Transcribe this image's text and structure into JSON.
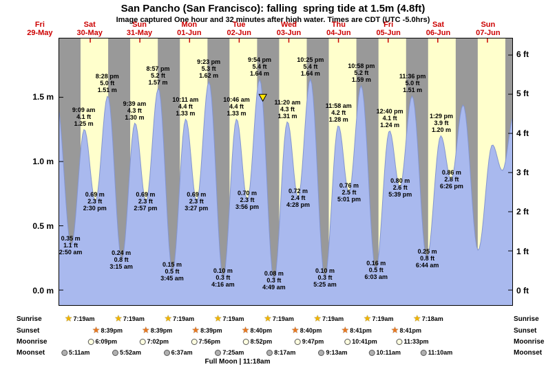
{
  "title": "San Pancho (San Francisco): falling  spring tide at 1.5m (4.8ft)",
  "subtitle": "Image captured One hour and 32 minutes after high water. Times are CDT (UTC -5.0hrs)",
  "colors": {
    "night_band": "#999999",
    "day_band": "#ffffcc",
    "tide_fill": "#a9b9ee",
    "tide_stroke": "#8395d0",
    "date_red": "#cc0000",
    "marker_fill": "#ffe400",
    "sunrise_star": "#f0b400",
    "sunset_star": "#e87820",
    "moonrise_fill": "#ffffe0",
    "moonset_fill": "#b0b0b0"
  },
  "y_axis_left": [
    {
      "text": "1.5 m",
      "m": 1.5
    },
    {
      "text": "1.0 m",
      "m": 1.0
    },
    {
      "text": "0.5 m",
      "m": 0.5
    },
    {
      "text": "0.0 m",
      "m": 0.0
    }
  ],
  "y_axis_right": [
    {
      "text": "6 ft",
      "ft": 6
    },
    {
      "text": "5 ft",
      "ft": 5
    },
    {
      "text": "4 ft",
      "ft": 4
    },
    {
      "text": "3 ft",
      "ft": 3
    },
    {
      "text": "2 ft",
      "ft": 2
    },
    {
      "text": "1 ft",
      "ft": 1
    },
    {
      "text": "0 ft",
      "ft": 0
    }
  ],
  "days": [
    {
      "dow": "Fri",
      "date": "29-May"
    },
    {
      "dow": "Sat",
      "date": "30-May"
    },
    {
      "dow": "Sun",
      "date": "31-May"
    },
    {
      "dow": "Mon",
      "date": "01-Jun"
    },
    {
      "dow": "Tue",
      "date": "02-Jun"
    },
    {
      "dow": "Wed",
      "date": "03-Jun"
    },
    {
      "dow": "Thu",
      "date": "04-Jun"
    },
    {
      "dow": "Fri",
      "date": "05-Jun"
    },
    {
      "dow": "Sat",
      "date": "06-Jun"
    },
    {
      "dow": "Sun",
      "date": "07-Jun"
    }
  ],
  "chart_data": {
    "type": "area",
    "x_axis": "time, 29-May through 07-Jun",
    "y_axis_left_unit": "m",
    "y_axis_right_unit": "ft",
    "ylim_m": [
      -0.12,
      1.96
    ],
    "extremes": [
      {
        "type": "low",
        "day": 1,
        "time": "2:50 am",
        "ft": "1.1 ft",
        "m": "0.35 m",
        "height_m": 0.35
      },
      {
        "type": "high",
        "day": 1,
        "time": "9:09 am",
        "ft": "4.1 ft",
        "m": "1.25 m",
        "height_m": 1.25
      },
      {
        "type": "low",
        "day": 1,
        "time": "2:30 pm",
        "ft": "2.3 ft",
        "m": "0.69 m",
        "height_m": 0.69
      },
      {
        "type": "high",
        "day": 1,
        "time": "8:28 pm",
        "ft": "5.0 ft",
        "m": "1.51 m",
        "height_m": 1.51
      },
      {
        "type": "low",
        "day": 2,
        "time": "3:15 am",
        "ft": "0.8 ft",
        "m": "0.24 m",
        "height_m": 0.24
      },
      {
        "type": "high",
        "day": 2,
        "time": "9:39 am",
        "ft": "4.3 ft",
        "m": "1.30 m",
        "height_m": 1.3
      },
      {
        "type": "low",
        "day": 2,
        "time": "2:57 pm",
        "ft": "2.3 ft",
        "m": "0.69 m",
        "height_m": 0.69
      },
      {
        "type": "high",
        "day": 2,
        "time": "8:57 pm",
        "ft": "5.2 ft",
        "m": "1.57 m",
        "height_m": 1.57
      },
      {
        "type": "low",
        "day": 3,
        "time": "3:45 am",
        "ft": "0.5 ft",
        "m": "0.15 m",
        "height_m": 0.15
      },
      {
        "type": "high",
        "day": 3,
        "time": "10:11 am",
        "ft": "4.4 ft",
        "m": "1.33 m",
        "height_m": 1.33
      },
      {
        "type": "low",
        "day": 3,
        "time": "3:27 pm",
        "ft": "2.3 ft",
        "m": "0.69 m",
        "height_m": 0.69
      },
      {
        "type": "high",
        "day": 3,
        "time": "9:23 pm",
        "ft": "5.3 ft",
        "m": "1.62 m",
        "height_m": 1.62
      },
      {
        "type": "low",
        "day": 4,
        "time": "4:16 am",
        "ft": "0.3 ft",
        "m": "0.10 m",
        "height_m": 0.1
      },
      {
        "type": "high",
        "day": 4,
        "time": "10:46 am",
        "ft": "4.4 ft",
        "m": "1.33 m",
        "height_m": 1.33
      },
      {
        "type": "low",
        "day": 4,
        "time": "3:56 pm",
        "ft": "2.3 ft",
        "m": "0.70 m",
        "height_m": 0.7
      },
      {
        "type": "high",
        "day": 4,
        "time": "9:54 pm",
        "ft": "5.4 ft",
        "m": "1.64 m",
        "height_m": 1.64
      },
      {
        "type": "low",
        "day": 5,
        "time": "4:49 am",
        "ft": "0.3 ft",
        "m": "0.08 m",
        "height_m": 0.08
      },
      {
        "type": "high",
        "day": 5,
        "time": "11:20 am",
        "ft": "4.3 ft",
        "m": "1.31 m",
        "height_m": 1.31
      },
      {
        "type": "low",
        "day": 5,
        "time": "4:28 pm",
        "ft": "2.4 ft",
        "m": "0.72 m",
        "height_m": 0.72
      },
      {
        "type": "high",
        "day": 5,
        "time": "10:25 pm",
        "ft": "5.4 ft",
        "m": "1.64 m",
        "height_m": 1.64
      },
      {
        "type": "low",
        "day": 6,
        "time": "5:25 am",
        "ft": "0.3 ft",
        "m": "0.10 m",
        "height_m": 0.1
      },
      {
        "type": "high",
        "day": 6,
        "time": "11:58 am",
        "ft": "4.2 ft",
        "m": "1.28 m",
        "height_m": 1.28
      },
      {
        "type": "low",
        "day": 6,
        "time": "5:01 pm",
        "ft": "2.5 ft",
        "m": "0.76 m",
        "height_m": 0.76
      },
      {
        "type": "high",
        "day": 6,
        "time": "10:58 pm",
        "ft": "5.2 ft",
        "m": "1.59 m",
        "height_m": 1.59
      },
      {
        "type": "low",
        "day": 7,
        "time": "6:03 am",
        "ft": "0.5 ft",
        "m": "0.16 m",
        "height_m": 0.16
      },
      {
        "type": "high",
        "day": 7,
        "time": "12:40 pm",
        "ft": "4.1 ft",
        "m": "1.24 m",
        "height_m": 1.24
      },
      {
        "type": "low",
        "day": 7,
        "time": "5:39 pm",
        "ft": "2.6 ft",
        "m": "0.80 m",
        "height_m": 0.8
      },
      {
        "type": "high",
        "day": 7,
        "time": "11:36 pm",
        "ft": "5.0 ft",
        "m": "1.51 m",
        "height_m": 1.51
      },
      {
        "type": "low",
        "day": 8,
        "time": "6:44 am",
        "ft": "0.8 ft",
        "m": "0.25 m",
        "height_m": 0.25
      },
      {
        "type": "high",
        "day": 8,
        "time": "1:29 pm",
        "ft": "3.9 ft",
        "m": "1.20 m",
        "height_m": 1.2
      },
      {
        "type": "low",
        "day": 8,
        "time": "6:26 pm",
        "ft": "2.8 ft",
        "m": "0.86 m",
        "height_m": 0.86
      }
    ],
    "edge_points": [
      {
        "day": 0,
        "hour": 19.9,
        "height_m": 1.45
      },
      {
        "day": 9,
        "hour": 0.25,
        "height_m": 1.44
      },
      {
        "day": 9,
        "hour": 7.5,
        "height_m": 0.31
      },
      {
        "day": 9,
        "hour": 14.4,
        "height_m": 1.13
      },
      {
        "day": 9,
        "hour": 19.2,
        "height_m": 0.93
      },
      {
        "day": 10,
        "hour": 0.9,
        "height_m": 1.36
      }
    ],
    "current_marker": {
      "day": 4,
      "hour": 23.43
    }
  },
  "almanac": {
    "rows": [
      {
        "id": "sunrise",
        "label": "Sunrise",
        "icon": "sunrise-star-icon",
        "events": [
          {
            "day": 1,
            "time": "7:19am"
          },
          {
            "day": 2,
            "time": "7:19am"
          },
          {
            "day": 3,
            "time": "7:19am"
          },
          {
            "day": 4,
            "time": "7:19am"
          },
          {
            "day": 5,
            "time": "7:19am"
          },
          {
            "day": 6,
            "time": "7:19am"
          },
          {
            "day": 7,
            "time": "7:19am"
          },
          {
            "day": 8,
            "time": "7:18am"
          }
        ]
      },
      {
        "id": "sunset",
        "label": "Sunset",
        "icon": "sunset-star-icon",
        "events": [
          {
            "day": 1,
            "time": "8:39pm"
          },
          {
            "day": 2,
            "time": "8:39pm"
          },
          {
            "day": 3,
            "time": "8:39pm"
          },
          {
            "day": 4,
            "time": "8:40pm"
          },
          {
            "day": 5,
            "time": "8:40pm"
          },
          {
            "day": 6,
            "time": "8:41pm"
          },
          {
            "day": 7,
            "time": "8:41pm"
          }
        ]
      },
      {
        "id": "moonrise",
        "label": "Moonrise",
        "icon": "moonrise-icon",
        "events": [
          {
            "day": 1,
            "time": "6:09pm"
          },
          {
            "day": 2,
            "time": "7:02pm"
          },
          {
            "day": 3,
            "time": "7:56pm"
          },
          {
            "day": 4,
            "time": "8:52pm"
          },
          {
            "day": 5,
            "time": "9:47pm"
          },
          {
            "day": 6,
            "time": "10:41pm"
          },
          {
            "day": 7,
            "time": "11:33pm"
          }
        ]
      },
      {
        "id": "moonset",
        "label": "Moonset",
        "icon": "moonset-icon",
        "events": [
          {
            "day": 1,
            "time": "5:11am"
          },
          {
            "day": 2,
            "time": "5:52am"
          },
          {
            "day": 3,
            "time": "6:37am"
          },
          {
            "day": 4,
            "time": "7:25am"
          },
          {
            "day": 5,
            "time": "8:17am"
          },
          {
            "day": 6,
            "time": "9:13am"
          },
          {
            "day": 7,
            "time": "10:11am"
          },
          {
            "day": 8,
            "time": "11:10am"
          }
        ]
      }
    ],
    "full_moon": "Full Moon | 11:18am"
  }
}
